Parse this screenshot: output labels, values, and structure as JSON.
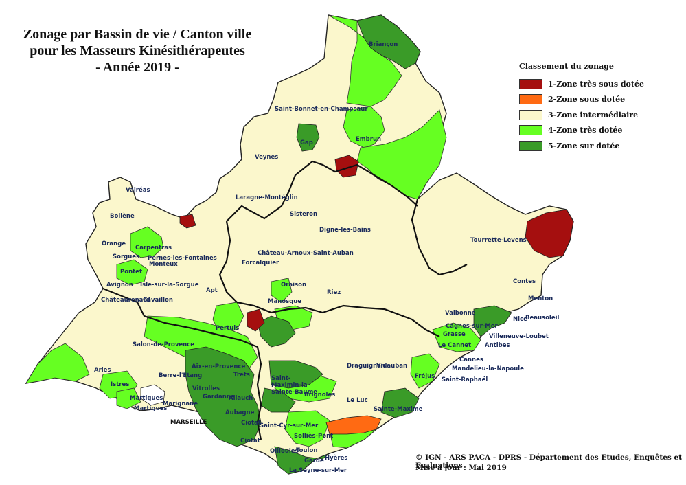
{
  "title": {
    "line1": "Zonage par Bassin de vie / Canton ville",
    "line2": "pour les Masseurs Kinésithérapeutes",
    "line3": "- Année 2019 -"
  },
  "legend": {
    "title": "Classement du zonage",
    "items": [
      {
        "label": "1-Zone très sous dotée",
        "color": "#a50f0f"
      },
      {
        "label": "2-Zone sous dotée",
        "color": "#ff6a13"
      },
      {
        "label": "3-Zone intermédiaire",
        "color": "#fbf7cc"
      },
      {
        "label": "4-Zone très dotée",
        "color": "#66ff22"
      },
      {
        "label": "5-Zone sur dotée",
        "color": "#3a9b28"
      }
    ]
  },
  "credits": {
    "source": "© IGN - ARS PACA - DPRS - Département des Etudes, Enquêtes et Evaluations",
    "update": "Mise à jour : Mai 2019"
  },
  "places": [
    {
      "id": "briancon",
      "name": "Briançon"
    },
    {
      "id": "st-bonnet",
      "name": "Saint-Bonnet-en-Champsaur"
    },
    {
      "id": "embrun",
      "name": "Embrun"
    },
    {
      "id": "gap",
      "name": "Gap"
    },
    {
      "id": "veynes",
      "name": "Veynes"
    },
    {
      "id": "laragne",
      "name": "Laragne-Montéglin"
    },
    {
      "id": "sisteron",
      "name": "Sisteron"
    },
    {
      "id": "digne",
      "name": "Digne-les-Bains"
    },
    {
      "id": "chateau-arnoux",
      "name": "Château-Arnoux-Saint-Auban"
    },
    {
      "id": "forcalquier",
      "name": "Forcalquier"
    },
    {
      "id": "oraison",
      "name": "Oraison"
    },
    {
      "id": "manosque",
      "name": "Manosque"
    },
    {
      "id": "riez",
      "name": "Riez"
    },
    {
      "id": "valreas",
      "name": "Valréas"
    },
    {
      "id": "bollene",
      "name": "Bollène"
    },
    {
      "id": "orange",
      "name": "Orange"
    },
    {
      "id": "carpentras",
      "name": "Carpentras"
    },
    {
      "id": "sorgues",
      "name": "Sorgues"
    },
    {
      "id": "pernes",
      "name": "Pernes-les-Fontaines"
    },
    {
      "id": "monteux",
      "name": "Monteux"
    },
    {
      "id": "pontet",
      "name": "Pontet"
    },
    {
      "id": "avignon",
      "name": "Avignon"
    },
    {
      "id": "isle",
      "name": "Isle-sur-la-Sorgue"
    },
    {
      "id": "apt",
      "name": "Apt"
    },
    {
      "id": "chateaurenard",
      "name": "Châteaurenard"
    },
    {
      "id": "cavaillon",
      "name": "Cavaillon"
    },
    {
      "id": "pertuis",
      "name": "Pertuis"
    },
    {
      "id": "salon",
      "name": "Salon-de-Provence"
    },
    {
      "id": "arles",
      "name": "Arles"
    },
    {
      "id": "aix",
      "name": "Aix-en-Provence"
    },
    {
      "id": "berre",
      "name": "Berre-l'Étang"
    },
    {
      "id": "trets",
      "name": "Trets"
    },
    {
      "id": "istres",
      "name": "Istres"
    },
    {
      "id": "vitrolles",
      "name": "Vitrolles"
    },
    {
      "id": "martigues1",
      "name": "Martigues"
    },
    {
      "id": "martigues2",
      "name": "Martigues"
    },
    {
      "id": "marignane",
      "name": "Marignane"
    },
    {
      "id": "gardanne",
      "name": "Gardanne"
    },
    {
      "id": "allauch",
      "name": "Allauch"
    },
    {
      "id": "marseille",
      "name": "MARSEILLE"
    },
    {
      "id": "aubagne",
      "name": "Aubagne"
    },
    {
      "id": "ciotat1",
      "name": "Ciotat"
    },
    {
      "id": "ciotat2",
      "name": "Ciotat"
    },
    {
      "id": "st-maximin",
      "name": "Saint-Maximin-la-Sainte-Baume"
    },
    {
      "id": "brignoles",
      "name": "Brignoles"
    },
    {
      "id": "st-cyr",
      "name": "Saint-Cyr-sur-Mer"
    },
    {
      "id": "sollies",
      "name": "Solliès-Pont"
    },
    {
      "id": "ollioules",
      "name": "Ollioules"
    },
    {
      "id": "toulon",
      "name": "Toulon"
    },
    {
      "id": "garde",
      "name": "Garde"
    },
    {
      "id": "hyeres",
      "name": "Hyères"
    },
    {
      "id": "seyne",
      "name": "La Seyne-sur-Mer"
    },
    {
      "id": "draguignan",
      "name": "Draguignan"
    },
    {
      "id": "vidauban",
      "name": "Vidauban"
    },
    {
      "id": "le-luc",
      "name": "Le Luc"
    },
    {
      "id": "ste-maxime",
      "name": "Sainte-Maxime"
    },
    {
      "id": "frejus",
      "name": "Fréjus"
    },
    {
      "id": "st-raphael",
      "name": "Saint-Raphaël"
    },
    {
      "id": "tourrette",
      "name": "Tourrette-Levens"
    },
    {
      "id": "contes",
      "name": "Contes"
    },
    {
      "id": "menton",
      "name": "Menton"
    },
    {
      "id": "valbonne",
      "name": "Valbonne"
    },
    {
      "id": "nice",
      "name": "Nice"
    },
    {
      "id": "beausoleil",
      "name": "Beausoleil"
    },
    {
      "id": "cagnes",
      "name": "Cagnes-sur-Mer"
    },
    {
      "id": "grasse",
      "name": "Grasse"
    },
    {
      "id": "villeneuve",
      "name": "Villeneuve-Loubet"
    },
    {
      "id": "le-cannet",
      "name": "Le Cannet"
    },
    {
      "id": "antibes",
      "name": "Antibes"
    },
    {
      "id": "cannes",
      "name": "Cannes"
    },
    {
      "id": "mandelieu",
      "name": "Mandelieu-la-Napoule"
    }
  ]
}
